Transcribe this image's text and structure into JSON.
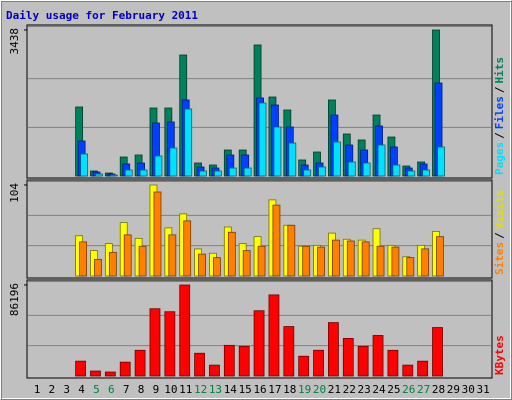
{
  "title": "Daily usage for February 2011",
  "chart_data": [
    {
      "type": "bar",
      "legend_separator": "/",
      "categories": [
        "1",
        "2",
        "3",
        "4",
        "5",
        "6",
        "7",
        "8",
        "9",
        "10",
        "11",
        "12",
        "13",
        "14",
        "15",
        "16",
        "17",
        "18",
        "19",
        "20",
        "21",
        "22",
        "23",
        "24",
        "25",
        "26",
        "27",
        "28",
        "29",
        "30",
        "31"
      ],
      "category_colors": [
        "#000000",
        "#000000",
        "#000000",
        "#000000",
        "#008040",
        "#008040",
        "#000000",
        "#000000",
        "#000000",
        "#000000",
        "#000000",
        "#008040",
        "#008040",
        "#000000",
        "#000000",
        "#000000",
        "#000000",
        "#000000",
        "#008040",
        "#008040",
        "#000000",
        "#000000",
        "#000000",
        "#000000",
        "#000000",
        "#008040",
        "#008040",
        "#000000",
        "#000000",
        "#000000",
        "#000000"
      ],
      "ylim": [
        0,
        3438
      ],
      "yticks": [
        3438
      ],
      "series": [
        {
          "name": "Hits",
          "color": "#00805c",
          "values": [
            0,
            0,
            0,
            1625,
            118,
            70,
            447,
            495,
            1601,
            1601,
            2849,
            306,
            259,
            612,
            612,
            3085,
            1860,
            1554,
            377,
            565,
            1790,
            989,
            848,
            1436,
            918,
            235,
            330,
            3438,
            0,
            0,
            0
          ]
        },
        {
          "name": "Files",
          "color": "#0040ff",
          "values": [
            0,
            0,
            0,
            824,
            94,
            47,
            283,
            306,
            1248,
            1272,
            1790,
            212,
            188,
            495,
            495,
            1837,
            1672,
            1154,
            259,
            306,
            1436,
            730,
            612,
            1177,
            683,
            188,
            283,
            2190,
            0,
            0,
            0
          ]
        },
        {
          "name": "Pages",
          "color": "#00e0ff",
          "values": [
            0,
            0,
            0,
            518,
            47,
            24,
            141,
            141,
            471,
            659,
            1578,
            118,
            118,
            188,
            188,
            1719,
            1154,
            777,
            141,
            212,
            801,
            330,
            306,
            730,
            259,
            118,
            141,
            683,
            0,
            0,
            0
          ]
        }
      ]
    },
    {
      "type": "bar",
      "legend_separator": "/",
      "ylim": [
        0,
        104
      ],
      "yticks": [
        104
      ],
      "series": [
        {
          "name": "Visits",
          "color": "#ffff00",
          "values": [
            0,
            0,
            0,
            46,
            29,
            37,
            61,
            43,
            104,
            55,
            71,
            31,
            26,
            56,
            37,
            45,
            87,
            58,
            34,
            35,
            49,
            42,
            41,
            54,
            35,
            22,
            35,
            51,
            0,
            0,
            0
          ]
        },
        {
          "name": "Sites",
          "color": "#ff8000",
          "values": [
            0,
            0,
            0,
            39,
            19,
            27,
            47,
            34,
            96,
            47,
            63,
            25,
            21,
            50,
            29,
            34,
            81,
            58,
            34,
            33,
            41,
            40,
            39,
            34,
            33,
            21,
            31,
            45,
            0,
            0,
            0
          ]
        }
      ]
    },
    {
      "type": "bar",
      "ylim": [
        0,
        86196
      ],
      "yticks": [
        86196
      ],
      "series": [
        {
          "name": "KBytes",
          "color": "#ff0000",
          "values": [
            0,
            0,
            0,
            14054,
            4685,
            3748,
            13117,
            24360,
            63710,
            60900,
            86196,
            21550,
            10306,
            29045,
            28108,
            61837,
            76828,
            46846,
            18738,
            24360,
            50594,
            35602,
            28108,
            38414,
            24360,
            10306,
            14054,
            45909,
            0,
            0,
            0
          ]
        }
      ]
    }
  ]
}
